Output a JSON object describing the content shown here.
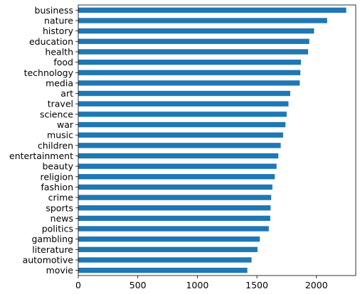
{
  "chart_data": {
    "type": "bar",
    "orientation": "horizontal",
    "categories": [
      "business",
      "nature",
      "history",
      "education",
      "health",
      "food",
      "technology",
      "media",
      "art",
      "travel",
      "science",
      "war",
      "music",
      "children",
      "entertainment",
      "beauty",
      "religion",
      "fashion",
      "crime",
      "sports",
      "news",
      "politics",
      "gambling",
      "literature",
      "automotive",
      "movie"
    ],
    "values": [
      2250,
      2090,
      1980,
      1940,
      1930,
      1870,
      1865,
      1860,
      1780,
      1765,
      1750,
      1740,
      1720,
      1700,
      1680,
      1665,
      1650,
      1630,
      1620,
      1615,
      1612,
      1600,
      1525,
      1505,
      1455,
      1420
    ],
    "xlim": [
      0,
      2330
    ],
    "xticks": [
      0,
      500,
      1000,
      1500,
      2000
    ],
    "xtick_labels": [
      "0",
      "500",
      "1000",
      "1500",
      "2000"
    ],
    "title": "",
    "xlabel": "",
    "ylabel": "",
    "grid": false,
    "bar_color": "#1f77b4"
  }
}
